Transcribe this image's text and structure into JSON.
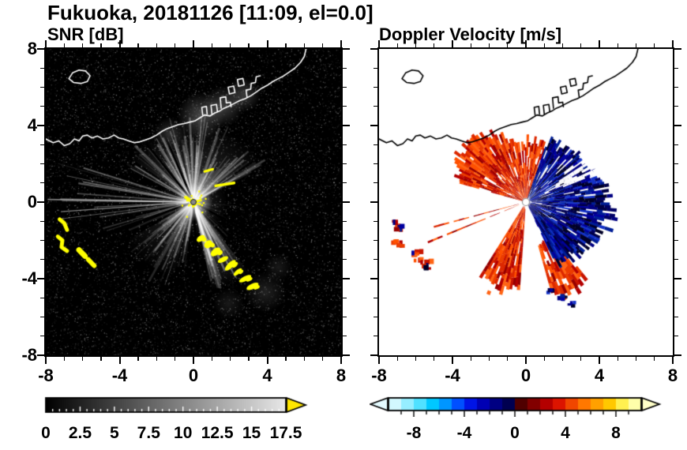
{
  "header": {
    "title": "Fukuoka, 20181126 [11:09, el=0.0]"
  },
  "panels": {
    "snr": {
      "title": "SNR [dB]"
    },
    "doppler": {
      "title": "Doppler Velocity [m/s]"
    }
  },
  "axes": {
    "xlim": [
      -8,
      8
    ],
    "ylim": [
      -8,
      8
    ],
    "major_ticks": [
      -8,
      -4,
      0,
      4,
      8
    ],
    "major_tick_labels": [
      "-8",
      "-4",
      "0",
      "4",
      "8"
    ],
    "minor_tick_step": 1
  },
  "colorbars": {
    "snr": {
      "range": [
        0,
        17.5
      ],
      "tick_values": [
        0,
        2.5,
        5,
        7.5,
        10,
        12.5,
        15,
        17.5
      ],
      "tick_labels": [
        "0",
        "2.5",
        "5",
        "7.5",
        "10",
        "12.5",
        "15",
        "17.5"
      ],
      "gradient": [
        "#000000",
        "#e8e8e8"
      ],
      "over_arrow_color": "#ffe600",
      "minor_tick_step": 0.5
    },
    "doppler": {
      "range": [
        -10,
        10
      ],
      "tick_values": [
        -8,
        -4,
        0,
        4,
        8
      ],
      "tick_labels": [
        "-8",
        "-4",
        "0",
        "4",
        "8"
      ],
      "block_colors": [
        "#d2f8ff",
        "#96eeff",
        "#50e1ff",
        "#00c8ff",
        "#0096ff",
        "#0050ff",
        "#0014e6",
        "#0000b4",
        "#000082",
        "#000050",
        "#500000",
        "#820000",
        "#b40000",
        "#dc1400",
        "#f04600",
        "#ff7800",
        "#ffa000",
        "#ffc800",
        "#fff050",
        "#ffffaa"
      ],
      "under_arrow_color": "#e4fbff",
      "over_arrow_color": "#ffffc8",
      "minor_tick_step": 1
    }
  },
  "map": {
    "snr_coast_color": "#ffffff",
    "doppler_coast_color": "#000000",
    "coastline": [
      [
        -8.0,
        3.3
      ],
      [
        -7.6,
        3.1
      ],
      [
        -7.3,
        3.2
      ],
      [
        -7.0,
        2.95
      ],
      [
        -6.7,
        3.05
      ],
      [
        -6.45,
        3.3
      ],
      [
        -6.2,
        3.2
      ],
      [
        -6.0,
        3.45
      ],
      [
        -5.75,
        3.5
      ],
      [
        -5.5,
        3.35
      ],
      [
        -5.2,
        3.45
      ],
      [
        -4.9,
        3.3
      ],
      [
        -4.6,
        3.35
      ],
      [
        -4.3,
        3.5
      ],
      [
        -4.05,
        3.35
      ],
      [
        -3.8,
        3.3
      ],
      [
        -3.5,
        3.2
      ],
      [
        -3.2,
        3.1
      ],
      [
        -2.9,
        3.15
      ],
      [
        -2.6,
        3.25
      ],
      [
        -2.3,
        3.35
      ],
      [
        -2.0,
        3.5
      ],
      [
        -1.7,
        3.7
      ],
      [
        -1.4,
        3.85
      ],
      [
        -1.1,
        3.95
      ],
      [
        -0.8,
        4.05
      ],
      [
        -0.5,
        4.1
      ],
      [
        -0.2,
        4.18
      ],
      [
        0.1,
        4.25
      ],
      [
        0.35,
        4.4
      ],
      [
        0.6,
        4.55
      ],
      [
        0.9,
        4.5
      ],
      [
        1.15,
        4.65
      ],
      [
        1.4,
        4.75
      ],
      [
        1.65,
        4.9
      ],
      [
        1.9,
        5.0
      ],
      [
        2.2,
        5.15
      ],
      [
        2.5,
        5.3
      ],
      [
        2.8,
        5.4
      ],
      [
        3.1,
        5.55
      ],
      [
        3.4,
        5.75
      ],
      [
        3.7,
        5.95
      ],
      [
        4.0,
        6.1
      ],
      [
        4.3,
        6.3
      ],
      [
        4.6,
        6.45
      ],
      [
        4.9,
        6.6
      ],
      [
        5.2,
        6.8
      ],
      [
        5.5,
        7.0
      ],
      [
        5.8,
        7.3
      ],
      [
        6.0,
        7.6
      ],
      [
        6.1,
        8.0
      ]
    ],
    "island": [
      [
        -6.75,
        6.45
      ],
      [
        -6.55,
        6.75
      ],
      [
        -6.2,
        6.9
      ],
      [
        -5.85,
        6.85
      ],
      [
        -5.6,
        6.6
      ],
      [
        -5.75,
        6.3
      ],
      [
        -6.1,
        6.2
      ],
      [
        -6.5,
        6.25
      ],
      [
        -6.75,
        6.45
      ]
    ],
    "harbor": [
      [
        [
          0.5,
          4.55
        ],
        [
          0.45,
          4.95
        ],
        [
          0.7,
          5.0
        ],
        [
          0.74,
          4.6
        ]
      ],
      [
        [
          1.0,
          4.6
        ],
        [
          0.95,
          5.05
        ],
        [
          1.25,
          5.1
        ],
        [
          1.3,
          4.72
        ]
      ],
      [
        [
          1.5,
          4.9
        ],
        [
          1.45,
          5.45
        ],
        [
          1.75,
          5.5
        ],
        [
          1.78,
          5.18
        ],
        [
          2.0,
          5.22
        ],
        [
          2.04,
          4.98
        ]
      ],
      [
        [
          1.95,
          5.65
        ],
        [
          1.88,
          6.0
        ],
        [
          2.18,
          6.06
        ],
        [
          2.25,
          5.72
        ],
        [
          1.95,
          5.65
        ]
      ],
      [
        [
          2.45,
          6.05
        ],
        [
          2.38,
          6.4
        ],
        [
          2.68,
          6.46
        ],
        [
          2.75,
          6.12
        ],
        [
          2.45,
          6.05
        ]
      ],
      [
        [
          2.9,
          5.5
        ],
        [
          2.85,
          5.85
        ],
        [
          3.1,
          5.9
        ],
        [
          3.13,
          6.2
        ],
        [
          3.36,
          6.25
        ],
        [
          3.4,
          6.55
        ],
        [
          3.62,
          6.6
        ]
      ]
    ]
  },
  "chart_data": [
    {
      "type": "heatmap",
      "title": "SNR [dB]",
      "xlim": [
        -8,
        8
      ],
      "ylim": [
        -8,
        8
      ],
      "xticks": [
        -8,
        -4,
        0,
        4,
        8
      ],
      "yticks": [
        -8,
        -4,
        0,
        4,
        8
      ],
      "value_range": [
        0,
        17.5
      ],
      "background_color": "#000000",
      "radar_center": [
        0,
        0
      ],
      "features": {
        "echo_color": "#ffff00",
        "soft_wedges": [
          [
            -55,
            55,
            4.2,
            0.22
          ],
          [
            142,
            168,
            4.8,
            0.4
          ],
          [
            195,
            240,
            4.2,
            0.15
          ],
          [
            0,
            360,
            1.8,
            0.16
          ]
        ],
        "streak_sectors": [
          [
            -65,
            65,
            95,
            1.2,
            4.6,
            0.05,
            0.3,
            2.6
          ],
          [
            20,
            70,
            25,
            1.0,
            3.2,
            0.04,
            0.2,
            2.0
          ],
          [
            95,
            140,
            12,
            0.8,
            2.8,
            0.04,
            0.14,
            1.8
          ],
          [
            142,
            168,
            30,
            2.0,
            4.9,
            0.1,
            0.38,
            2.6
          ],
          [
            188,
            240,
            45,
            1.5,
            4.8,
            0.05,
            0.26,
            2.2
          ],
          [
            240,
            262,
            10,
            2.0,
            5.6,
            0.08,
            0.3,
            1.6
          ],
          [
            262,
            290,
            12,
            2.0,
            7.9,
            0.1,
            0.4,
            1.4
          ]
        ],
        "long_west_rays": [
          [
            271,
            7.9
          ],
          [
            266,
            7.2
          ]
        ],
        "shadow_rays": [
          [
            -40,
            4.0
          ],
          [
            -24,
            4.5
          ],
          [
            118,
            7.6
          ],
          [
            177,
            4.9
          ],
          [
            251,
            5.8
          ]
        ],
        "wisps": [
          [
            0.4,
            4.5,
            30,
            0.35
          ],
          [
            1.6,
            5.0,
            26,
            0.3
          ],
          [
            2.7,
            5.6,
            22,
            0.28
          ],
          [
            -1.3,
            3.6,
            20,
            0.22
          ],
          [
            3.9,
            -4.7,
            26,
            0.16
          ],
          [
            1.9,
            -5.3,
            20,
            0.12
          ],
          [
            4.6,
            -3.4,
            18,
            0.12
          ]
        ],
        "echo_chain_sse": [
          [
            0.4,
            -1.9
          ],
          [
            0.8,
            -2.2
          ],
          [
            1.2,
            -2.6
          ],
          [
            1.6,
            -3.0
          ],
          [
            2.0,
            -3.3
          ],
          [
            2.4,
            -3.65
          ],
          [
            2.8,
            -4.0
          ],
          [
            3.2,
            -4.4
          ]
        ],
        "echo_patches_west": [
          {
            "pts": [
              [
                -7.25,
                -0.9
              ],
              [
                -7.0,
                -1.1
              ],
              [
                -6.85,
                -1.45
              ]
            ],
            "w": 5
          },
          {
            "pts": [
              [
                -7.35,
                -1.8
              ],
              [
                -7.1,
                -2.0
              ],
              [
                -7.15,
                -2.35
              ],
              [
                -6.85,
                -2.55
              ]
            ],
            "w": 5
          },
          {
            "pts": [
              [
                -6.2,
                -2.5
              ],
              [
                -5.88,
                -2.82
              ]
            ],
            "w": 7
          },
          {
            "pts": [
              [
                -5.7,
                -3.0
              ],
              [
                -5.38,
                -3.32
              ]
            ],
            "w": 6
          }
        ],
        "ship_streaks": [
          {
            "pts": [
              [
                1.2,
                0.85
              ],
              [
                2.2,
                1.0
              ]
            ],
            "w": 3.5
          },
          {
            "pts": [
              [
                0.6,
                1.6
              ],
              [
                1.05,
                1.72
              ]
            ],
            "w": 3
          }
        ]
      }
    },
    {
      "type": "heatmap",
      "title": "Doppler Velocity [m/s]",
      "xlim": [
        -8,
        8
      ],
      "ylim": [
        -8,
        8
      ],
      "xticks": [
        -8,
        -4,
        0,
        4,
        8
      ],
      "yticks": [
        -8,
        -4,
        0,
        4,
        8
      ],
      "value_range": [
        -10,
        10
      ],
      "background_color": "#ffffff",
      "radar_center": [
        0,
        0
      ],
      "features": {
        "positive_palette": [
          "#c81400",
          "#dc2800",
          "#eb3c00",
          "#ff5000",
          "#b40000",
          "#960000",
          "#ff6414"
        ],
        "negative_palette": [
          "#000082",
          "#000064",
          "#0000a0",
          "#001e96",
          "#000046",
          "#1432c8",
          "#000028"
        ],
        "regions": {
          "positive_fan": {
            "az": [
              285,
              380
            ],
            "r_in": 0.18,
            "r_base": 3.0,
            "bump_az": 310,
            "bump": 1.3,
            "bump_width": 30,
            "holes": 0.1
          },
          "positive_wedge_ssw": {
            "az": [
              184,
              212
            ],
            "r_in": 0.3,
            "r_base": 4.4,
            "bump_az": 198,
            "bump": 0.3,
            "bump_width": 12,
            "holes": 0.08
          },
          "positive_patch_sse": {
            "az": [
              140,
              162
            ],
            "r_in": 2.3,
            "r_base": 4.6,
            "bump_az": 148,
            "bump": 0.7,
            "bump_width": 10,
            "holes": 0.12
          },
          "negative_ext_se": {
            "az": [
              128,
              152
            ],
            "r_in": 1.0,
            "r_base": 3.4,
            "bump_az": 138,
            "bump": 0.3,
            "bump_width": 15,
            "holes": 0.15
          },
          "negative_blob": {
            "az": [
              20,
              150
            ],
            "r_in": 0.25,
            "r_base": 3.3,
            "bump_az": 95,
            "bump": 1.3,
            "bump_width": 30,
            "holes": 0.12
          }
        },
        "white_notch": {
          "az": [
            58,
            67
          ],
          "r_in": 1.5,
          "r_base": 4.6,
          "holes": 0.3
        },
        "thin_positive_rays": [
          [
            248,
            5.6
          ],
          [
            255,
            5.0
          ]
        ],
        "west_patches": [
          [
            -7.05,
            -1.15
          ],
          [
            -7.1,
            -2.1
          ],
          [
            -6.0,
            -2.68
          ],
          [
            -5.55,
            -3.15
          ]
        ],
        "small_negative_patches": [
          [
            1.9,
            -4.85
          ],
          [
            2.45,
            -5.2
          ],
          [
            1.3,
            -4.6
          ]
        ]
      }
    }
  ]
}
